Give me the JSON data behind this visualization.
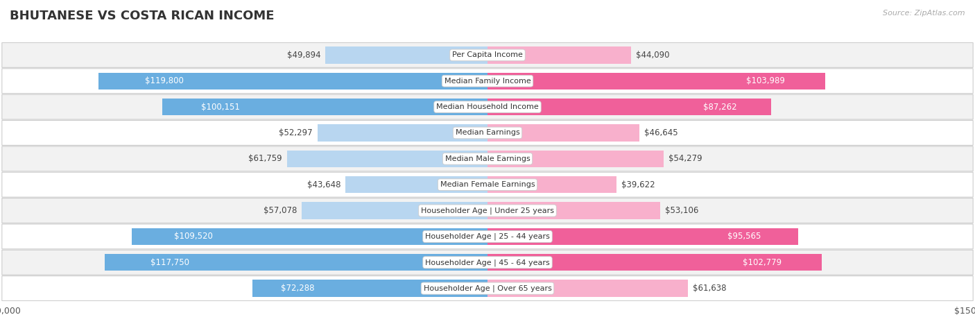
{
  "title": "BHUTANESE VS COSTA RICAN INCOME",
  "source": "Source: ZipAtlas.com",
  "categories": [
    "Per Capita Income",
    "Median Family Income",
    "Median Household Income",
    "Median Earnings",
    "Median Male Earnings",
    "Median Female Earnings",
    "Householder Age | Under 25 years",
    "Householder Age | 25 - 44 years",
    "Householder Age | 45 - 64 years",
    "Householder Age | Over 65 years"
  ],
  "bhutanese": [
    49894,
    119800,
    100151,
    52297,
    61759,
    43648,
    57078,
    109520,
    117750,
    72288
  ],
  "costa_rican": [
    44090,
    103989,
    87262,
    46645,
    54279,
    39622,
    53106,
    95565,
    102779,
    61638
  ],
  "bhutanese_labels": [
    "$49,894",
    "$119,800",
    "$100,151",
    "$52,297",
    "$61,759",
    "$43,648",
    "$57,078",
    "$109,520",
    "$117,750",
    "$72,288"
  ],
  "costa_rican_labels": [
    "$44,090",
    "$103,989",
    "$87,262",
    "$46,645",
    "$54,279",
    "$39,622",
    "$53,106",
    "$95,565",
    "$102,779",
    "$61,638"
  ],
  "blue_solid": "#6aaee0",
  "blue_light": "#b8d6f0",
  "pink_solid": "#f0609a",
  "pink_light": "#f8b0cc",
  "max_value": 150000,
  "bg_color": "#ffffff",
  "row_bg_even": "#f2f2f2",
  "row_bg_odd": "#ffffff",
  "title_fontsize": 13,
  "label_fontsize": 8.5,
  "category_fontsize": 8,
  "inside_label_threshold": 0.45
}
